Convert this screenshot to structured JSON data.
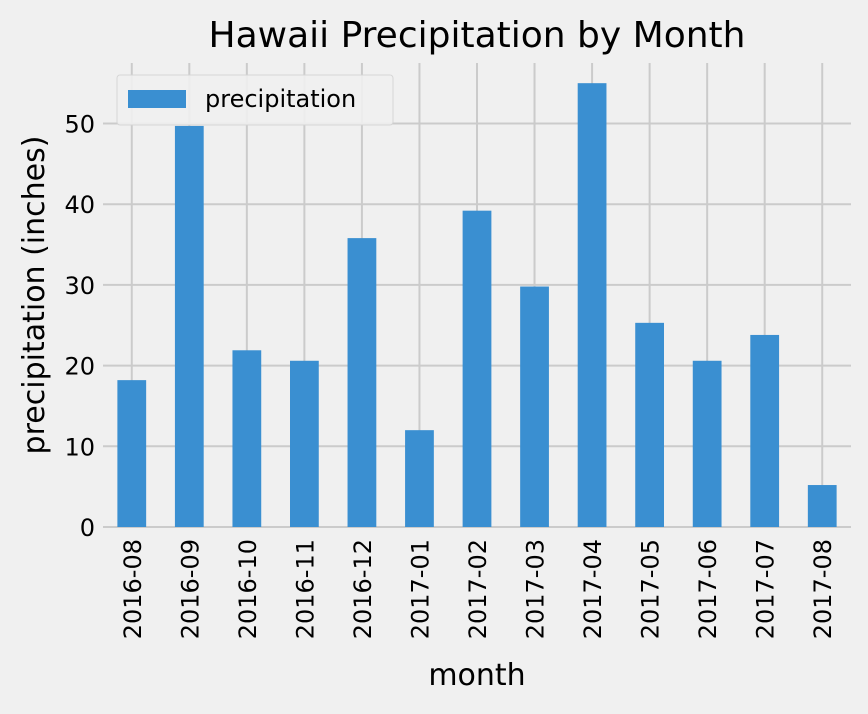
{
  "chart_data": {
    "type": "bar",
    "title": "Hawaii Precipitation by Month",
    "xlabel": "month",
    "ylabel": "precipitation (inches)",
    "categories": [
      "2016-08",
      "2016-09",
      "2016-10",
      "2016-11",
      "2016-12",
      "2017-01",
      "2017-02",
      "2017-03",
      "2017-04",
      "2017-05",
      "2017-06",
      "2017-07",
      "2017-08"
    ],
    "series": [
      {
        "name": "precipitation",
        "color": "#3a8fd1",
        "values": [
          18.2,
          49.7,
          21.9,
          20.6,
          35.8,
          12.0,
          39.2,
          29.8,
          55.0,
          25.3,
          20.6,
          23.8,
          5.2
        ]
      }
    ],
    "ylim": [
      0,
      57.5
    ],
    "yticks": [
      0,
      10,
      20,
      30,
      40,
      50
    ],
    "grid": true,
    "legend_position": "top-left",
    "style": "fivethirtyeight"
  }
}
